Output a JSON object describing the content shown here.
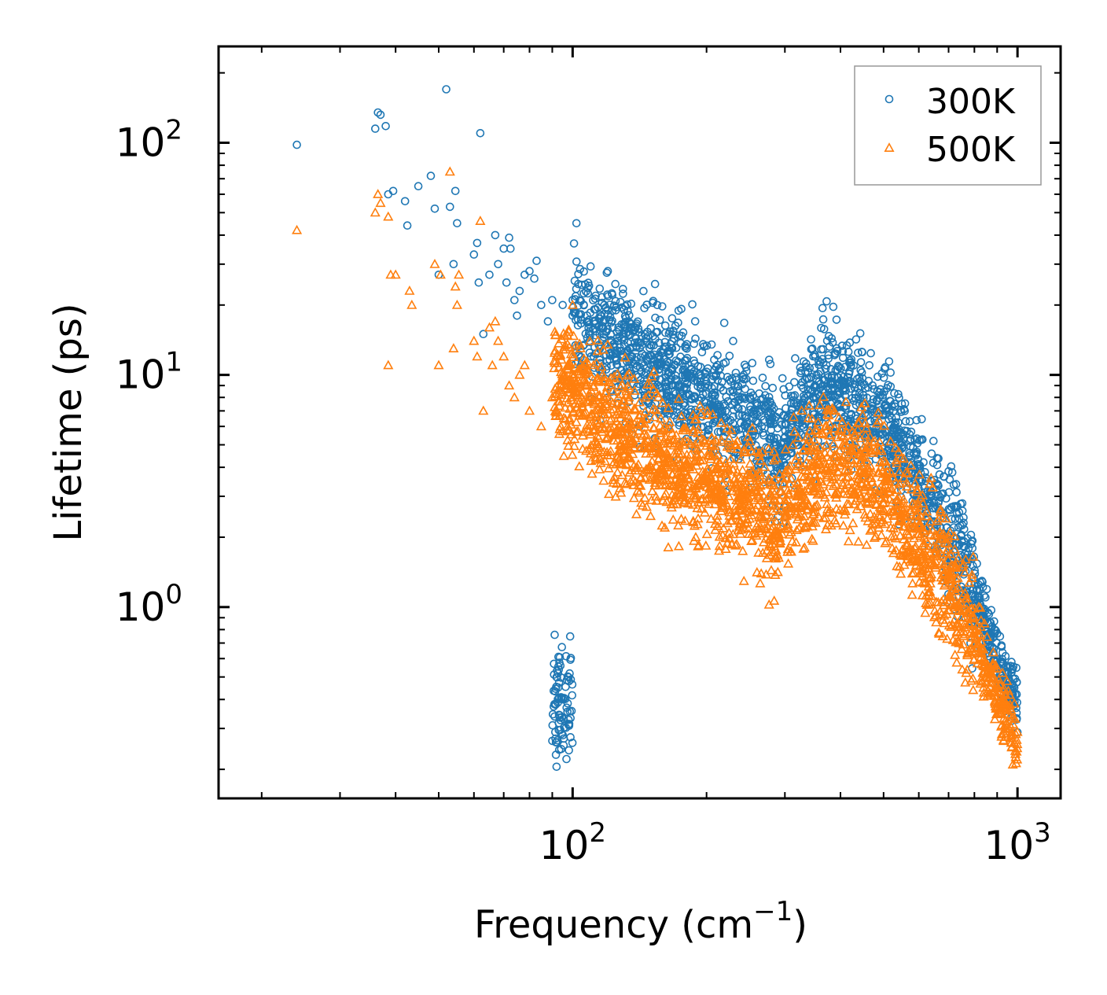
{
  "chart_data": {
    "type": "scatter",
    "title": "",
    "xlabel": "Frequency (cm",
    "xlabel_sup": "−1",
    "xlabel_end": ")",
    "ylabel": "Lifetime (ps)",
    "xscale": "log",
    "yscale": "log",
    "xlim": [
      16,
      1250
    ],
    "ylim": [
      0.15,
      260
    ],
    "x_ticks": [
      {
        "value": 100,
        "base": "10",
        "exp": "2"
      },
      {
        "value": 1000,
        "base": "10",
        "exp": "3"
      }
    ],
    "y_ticks": [
      {
        "value": 1,
        "base": "10",
        "exp": "0"
      },
      {
        "value": 10,
        "base": "10",
        "exp": "1"
      },
      {
        "value": 100,
        "base": "10",
        "exp": "2"
      }
    ],
    "legend_position": "top-right",
    "series": [
      {
        "name": "300K",
        "marker": "circle",
        "color": "#1f77b4",
        "profile": [
          [
            100,
            18
          ],
          [
            150,
            11
          ],
          [
            200,
            8
          ],
          [
            250,
            6.5
          ],
          [
            290,
            4.6
          ],
          [
            320,
            6
          ],
          [
            370,
            9
          ],
          [
            420,
            8
          ],
          [
            500,
            6.5
          ],
          [
            600,
            3.5
          ],
          [
            700,
            2.2
          ],
          [
            800,
            1.2
          ],
          [
            900,
            0.6
          ],
          [
            1000,
            0.38
          ]
        ],
        "points": [
          [
            24,
            98
          ],
          [
            36,
            115
          ],
          [
            36.5,
            135
          ],
          [
            37,
            132
          ],
          [
            38,
            118
          ],
          [
            38.5,
            60
          ],
          [
            39.5,
            62
          ],
          [
            42,
            56
          ],
          [
            42.5,
            44
          ],
          [
            45,
            65
          ],
          [
            48,
            72
          ],
          [
            49,
            52
          ],
          [
            50,
            27
          ],
          [
            52,
            170
          ],
          [
            53,
            53
          ],
          [
            54,
            30
          ],
          [
            54.5,
            62
          ],
          [
            55,
            45
          ],
          [
            60,
            33
          ],
          [
            61,
            37
          ],
          [
            61.5,
            25
          ],
          [
            62,
            110
          ],
          [
            63,
            15
          ],
          [
            65,
            27
          ],
          [
            67,
            40
          ],
          [
            68,
            30
          ],
          [
            70,
            35
          ],
          [
            71,
            25
          ],
          [
            72,
            39
          ],
          [
            72.5,
            35
          ],
          [
            74,
            21
          ],
          [
            75,
            18
          ],
          [
            76,
            23
          ],
          [
            78,
            27
          ],
          [
            80,
            28
          ],
          [
            82,
            26
          ],
          [
            83,
            31
          ],
          [
            85,
            20
          ],
          [
            88,
            17
          ],
          [
            90,
            21
          ],
          [
            95,
            20
          ],
          [
            100,
            18
          ],
          [
            102,
            45
          ],
          [
            120,
            28
          ],
          [
            125,
            19
          ],
          [
            155,
            20
          ],
          [
            110,
            12
          ],
          [
            115,
            15
          ]
        ]
      },
      {
        "name": "500K",
        "marker": "triangle",
        "color": "#ff7f0e",
        "profile": [
          [
            90,
            10
          ],
          [
            130,
            5.3
          ],
          [
            200,
            3.6
          ],
          [
            250,
            3
          ],
          [
            290,
            2.2
          ],
          [
            320,
            3.2
          ],
          [
            370,
            4.2
          ],
          [
            420,
            4.2
          ],
          [
            500,
            3.2
          ],
          [
            600,
            2.0
          ],
          [
            700,
            1.2
          ],
          [
            800,
            0.75
          ],
          [
            900,
            0.42
          ],
          [
            1000,
            0.26
          ]
        ],
        "points": [
          [
            24,
            42
          ],
          [
            36,
            50
          ],
          [
            36.5,
            60
          ],
          [
            37,
            55
          ],
          [
            38.5,
            48
          ],
          [
            39,
            27
          ],
          [
            40,
            27
          ],
          [
            38.5,
            11
          ],
          [
            43,
            23
          ],
          [
            43.5,
            20
          ],
          [
            49,
            30
          ],
          [
            50,
            11
          ],
          [
            50.5,
            27
          ],
          [
            53,
            75
          ],
          [
            54,
            13
          ],
          [
            54.5,
            24
          ],
          [
            55,
            20
          ],
          [
            55.5,
            27
          ],
          [
            60,
            14
          ],
          [
            61,
            12
          ],
          [
            62,
            46
          ],
          [
            63,
            7
          ],
          [
            65,
            16
          ],
          [
            66,
            11
          ],
          [
            67,
            17
          ],
          [
            68,
            14
          ],
          [
            70,
            12
          ],
          [
            72,
            9
          ],
          [
            74,
            8
          ],
          [
            76,
            10
          ],
          [
            78,
            11
          ],
          [
            80,
            7
          ],
          [
            85,
            6
          ],
          [
            90,
            8
          ],
          [
            100,
            20
          ],
          [
            105,
            8
          ]
        ]
      }
    ]
  }
}
